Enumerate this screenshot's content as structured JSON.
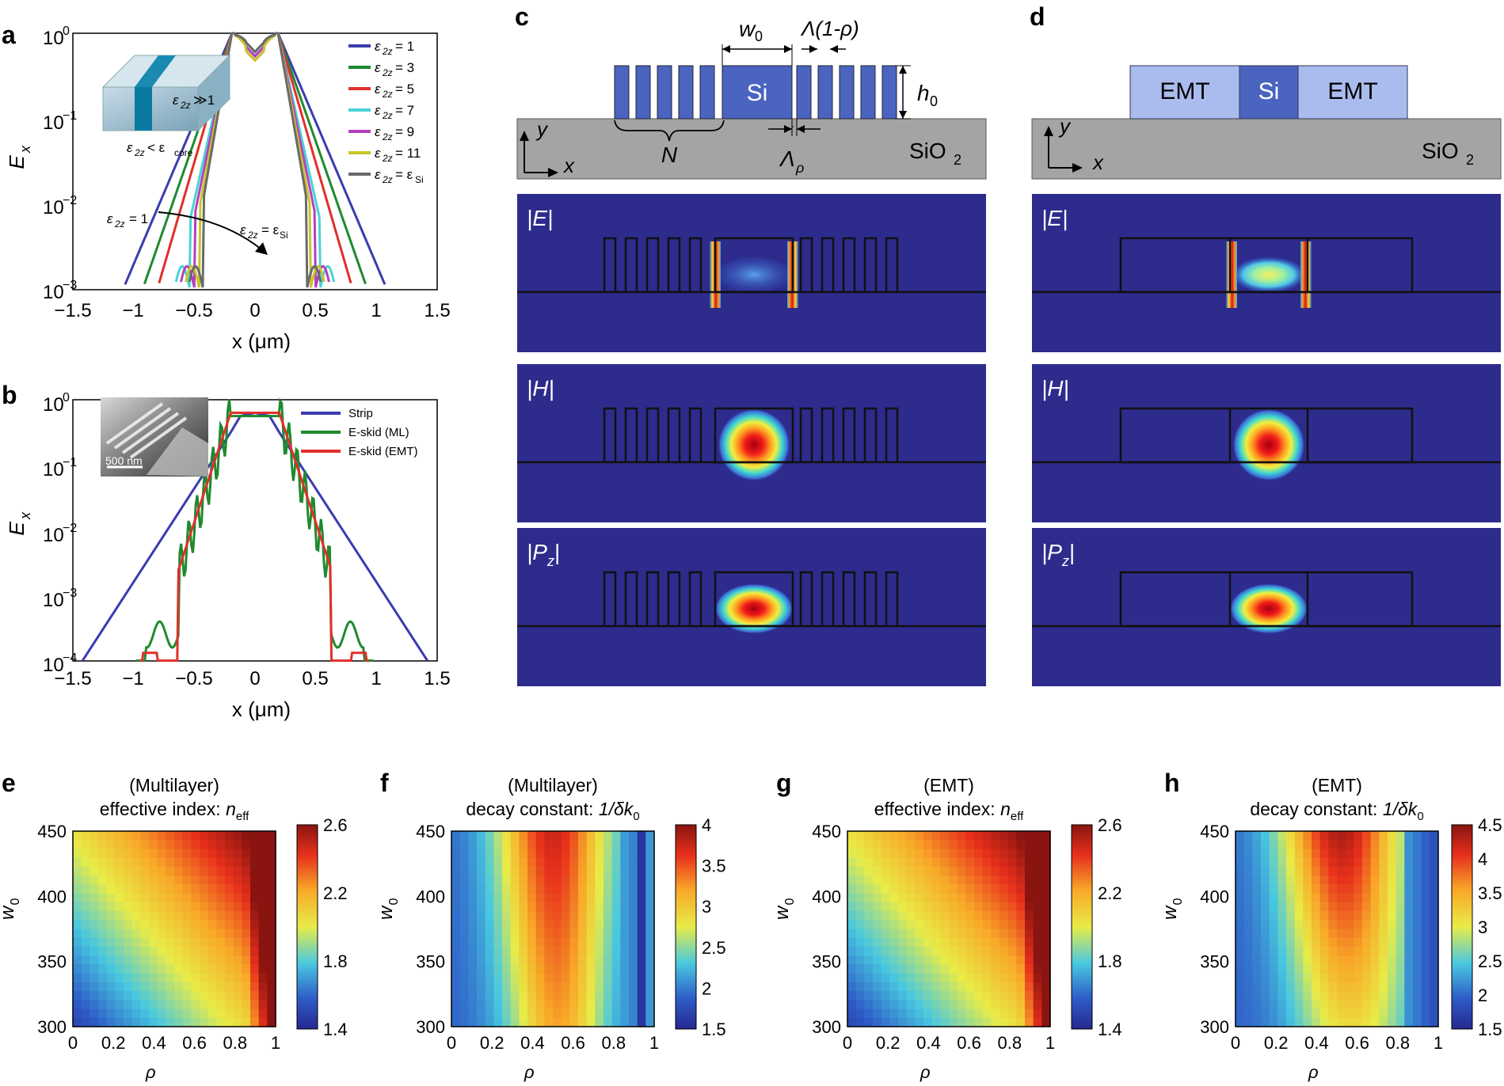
{
  "panel_labels": {
    "a": "a",
    "b": "b",
    "c": "c",
    "d": "d",
    "e": "e",
    "f": "f",
    "g": "g",
    "h": "h"
  },
  "colors": {
    "blue": "#3b3bb0",
    "green": "#1e8a2e",
    "red": "#e0302a",
    "cyan": "#49d3d3",
    "magenta": "#b43fc0",
    "olive": "#c8c52a",
    "gray": "#6a6a6a",
    "si": "#4a64c0",
    "emt": "#aabbee",
    "substrate": "#a0a0a0",
    "fieldbg": "#2d2b8c"
  },
  "panel_a": {
    "ylabel_main": "E",
    "ylabel_sub": "x",
    "xlabel": "x (μm)",
    "yticks": [
      "10",
      "10",
      "10",
      "10"
    ],
    "yexps": [
      "0",
      "−1",
      "−2",
      "−3"
    ],
    "xticks": [
      "−1.5",
      "−1",
      "−0.5",
      "0",
      "0.5",
      "1",
      "1.5"
    ],
    "legend": [
      {
        "label": "ε",
        "sub": "2z",
        "rhs": "= 1"
      },
      {
        "label": "ε",
        "sub": "2z",
        "rhs": "= 3"
      },
      {
        "label": "ε",
        "sub": "2z",
        "rhs": "= 5"
      },
      {
        "label": "ε",
        "sub": "2z",
        "rhs": "= 7"
      },
      {
        "label": "ε",
        "sub": "2z",
        "rhs": "= 9"
      },
      {
        "label": "ε",
        "sub": "2z",
        "rhs": "= 11"
      },
      {
        "label": "ε",
        "sub": "2z",
        "rhs": "= ε",
        "rsub": "Si"
      }
    ],
    "ann_gg": "≫1",
    "ann_lt": "< ε",
    "ann_core": "core",
    "ann_eq1": "= 1",
    "ann_eqsi": "= ε",
    "ann_si": "Si"
  },
  "panel_b": {
    "ylabel_main": "E",
    "ylabel_sub": "x",
    "xlabel": "x (μm)",
    "yexps": [
      "0",
      "−1",
      "−2",
      "−3",
      "−4"
    ],
    "xticks": [
      "−1.5",
      "−1",
      "−0.5",
      "0",
      "0.5",
      "1",
      "1.5"
    ],
    "legend": [
      "Strip",
      "E-skid (ML)",
      "E-skid (EMT)"
    ],
    "scalebar": "500 nm"
  },
  "panel_c": {
    "si": "Si",
    "w0": "w",
    "w0sub": "0",
    "lam1": "Λ(1-ρ)",
    "h0": "h",
    "h0sub": "0",
    "N": "N",
    "lamrho": "Λ",
    "lamrhosub": "ρ",
    "sio2": "SiO",
    "sio2sub": "2",
    "y": "y",
    "x": "x",
    "fields": [
      {
        "t": "|E|"
      },
      {
        "t": "|H|"
      },
      {
        "t": "|P",
        "sub": "z",
        "end": "|"
      }
    ]
  },
  "panel_d": {
    "emt_left": "EMT",
    "si": "Si",
    "emt_right": "EMT",
    "sio2": "SiO",
    "sio2sub": "2",
    "y": "y",
    "x": "x",
    "fields": [
      {
        "t": "|E|"
      },
      {
        "t": "|H|"
      },
      {
        "t": "|P",
        "sub": "z",
        "end": "|"
      }
    ]
  },
  "maps": [
    {
      "key": "e",
      "title1": "(Multilayer)",
      "title2": "effective index: ",
      "tvar": "n",
      "tsub": "eff",
      "cb": [
        "2.6",
        "2.2",
        "1.8",
        "1.4"
      ],
      "kind": "neff"
    },
    {
      "key": "f",
      "title1": "(Multilayer)",
      "title2": "decay constant: ",
      "tvar": "1/δk",
      "tsub": "0",
      "cb": [
        "4",
        "3.5",
        "3",
        "2.5",
        "2",
        "1.5"
      ],
      "kind": "decay_ml"
    },
    {
      "key": "g",
      "title1": "(EMT)",
      "title2": "effective index: ",
      "tvar": "n",
      "tsub": "eff",
      "cb": [
        "2.6",
        "2.2",
        "1.8",
        "1.4"
      ],
      "kind": "neff"
    },
    {
      "key": "h",
      "title1": "(EMT)",
      "title2": "decay constant: ",
      "tvar": "1/δk",
      "tsub": "0",
      "cb": [
        "4.5",
        "4",
        "3.5",
        "3",
        "2.5",
        "2",
        "1.5"
      ],
      "kind": "decay_emt"
    }
  ],
  "map_axes": {
    "ylabel": "w",
    "ylabel_sub": "0",
    "xlabel": "ρ",
    "yticks": [
      "450",
      "400",
      "350",
      "300"
    ],
    "xticks": [
      "0",
      "0.2",
      "0.4",
      "0.6",
      "0.8",
      "1"
    ]
  }
}
